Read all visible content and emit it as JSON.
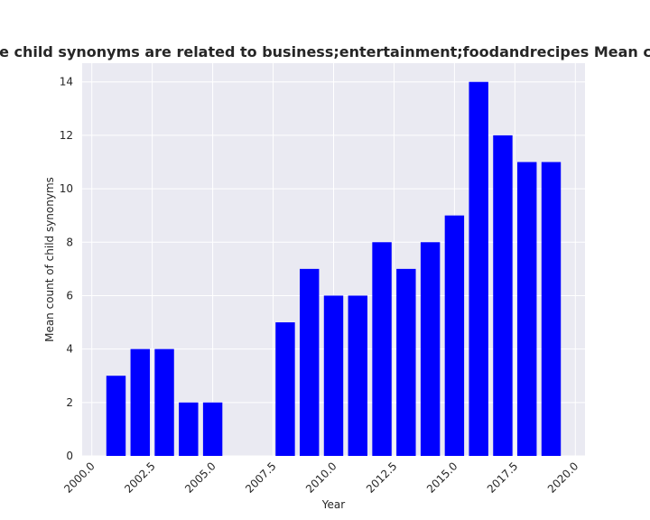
{
  "chart_data": {
    "type": "bar",
    "title": "Number of parent synonyms that include child synonyms are related to business;entertainment;foodandrecipes Mean count of child synonyms in privacy policies",
    "xlabel": "Year",
    "ylabel": "Mean count of child synonyms",
    "x": [
      2001,
      2002,
      2003,
      2004,
      2005,
      2008,
      2009,
      2010,
      2011,
      2012,
      2013,
      2014,
      2015,
      2016,
      2017,
      2018,
      2019
    ],
    "values": [
      3,
      4,
      4,
      2,
      2,
      5,
      7,
      6,
      6,
      8,
      7,
      8,
      9,
      14,
      12,
      11,
      11
    ],
    "xlim": [
      1999.6,
      2020.4
    ],
    "ylim": [
      0,
      14.7
    ],
    "xticks": [
      "2000.0",
      "2002.5",
      "2005.0",
      "2007.5",
      "2010.0",
      "2012.5",
      "2015.0",
      "2017.5",
      "2020.0"
    ],
    "yticks": [
      "0",
      "2",
      "4",
      "6",
      "8",
      "10",
      "12",
      "14"
    ],
    "grid": true,
    "bar_color": "#0000ff",
    "background_color": "#eaeaf2"
  }
}
